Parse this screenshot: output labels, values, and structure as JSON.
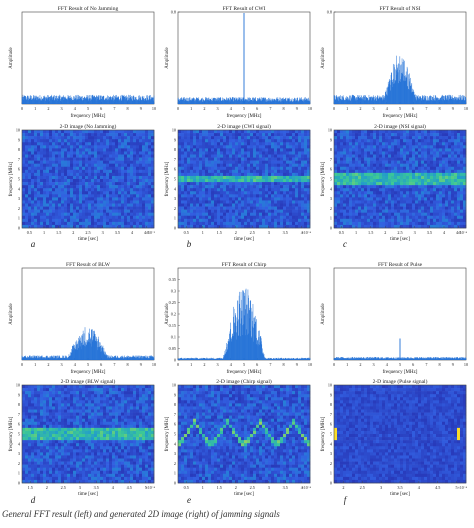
{
  "chart_data": [
    {
      "id": "fft-none",
      "type": "line",
      "title": "FFT Result of No Jamming",
      "xlabel": "frequency [MHz]",
      "ylabel": "Amplitude",
      "xlim": [
        0,
        10
      ],
      "ylim": [
        0,
        1
      ],
      "x_ticks": [
        "0",
        "1",
        "2",
        "3",
        "4",
        "5",
        "6",
        "7",
        "8",
        "9",
        "10"
      ],
      "y_ticks": [],
      "spectrum": {
        "kind": "noise",
        "floor": 0.1,
        "peak_center": 5,
        "peak_width": 0,
        "peak_height": 0
      },
      "color": "#1f6fd6"
    },
    {
      "id": "fft-cwi",
      "type": "line",
      "title": "FFT Result of CWI",
      "xlabel": "frequency [MHz]",
      "ylabel": "Amplitude",
      "xlim": [
        0,
        10
      ],
      "ylim": [
        0,
        0.8
      ],
      "x_ticks": [
        "0",
        "1",
        "2",
        "3",
        "4",
        "5",
        "6",
        "7",
        "8",
        "9",
        "10"
      ],
      "y_ticks": [
        "0.8"
      ],
      "spectrum": {
        "kind": "tone",
        "floor": 0.06,
        "peak_center": 5,
        "peak_width": 0.05,
        "peak_height": 0.8
      },
      "color": "#1f6fd6"
    },
    {
      "id": "fft-nsi",
      "type": "line",
      "title": "FFT Result of NSI",
      "xlabel": "frequency [MHz]",
      "ylabel": "Amplitude",
      "xlim": [
        0,
        10
      ],
      "ylim": [
        0,
        0.8
      ],
      "x_ticks": [
        "0",
        "1",
        "2",
        "3",
        "4",
        "5",
        "6",
        "7",
        "8",
        "9",
        "10"
      ],
      "y_ticks": [
        "0.8"
      ],
      "spectrum": {
        "kind": "band",
        "floor": 0.08,
        "peak_center": 5,
        "peak_width": 1.2,
        "peak_height": 0.38
      },
      "color": "#1f6fd6"
    },
    {
      "id": "img-none",
      "type": "heatmap",
      "title": "2-D image (No Jamming)",
      "xlabel": "time [sec]",
      "ylabel": "frequency [MHz]",
      "x_ticks": [
        "0.5",
        "1",
        "1.5",
        "2",
        "2.5",
        "3",
        "3.5",
        "4",
        "4.5"
      ],
      "x_exponent": "×10⁻³",
      "y_ticks": [
        "0",
        "1",
        "2",
        "3",
        "4",
        "5",
        "6",
        "7",
        "8",
        "9",
        "10"
      ],
      "pattern": {
        "kind": "none"
      },
      "panel_label": "a"
    },
    {
      "id": "img-cwi",
      "type": "heatmap",
      "title": "2-D image (CWI signal)",
      "xlabel": "time [sec]",
      "ylabel": "frequency [MHz]",
      "x_ticks": [
        "0.5",
        "1",
        "1.5",
        "2",
        "2.5",
        "3",
        "3.5",
        "4"
      ],
      "x_exponent": "×10⁻⁴",
      "y_ticks": [
        "0",
        "1",
        "2",
        "3",
        "4",
        "5",
        "6",
        "7",
        "8",
        "9",
        "10"
      ],
      "pattern": {
        "kind": "band",
        "center": 5,
        "width": 0.5
      },
      "panel_label": "b"
    },
    {
      "id": "img-nsi",
      "type": "heatmap",
      "title": "2-D image (NSI signal)",
      "xlabel": "time [sec]",
      "ylabel": "frequency [MHz]",
      "x_ticks": [
        "0.5",
        "1",
        "1.5",
        "2",
        "2.5",
        "3",
        "3.5",
        "4",
        "4.5"
      ],
      "x_exponent": "×10⁻⁴",
      "y_ticks": [
        "0",
        "1",
        "2",
        "3",
        "4",
        "5",
        "6",
        "7",
        "8",
        "9",
        "10"
      ],
      "pattern": {
        "kind": "band",
        "center": 5,
        "width": 0.8
      },
      "panel_label": "c"
    },
    {
      "id": "fft-blw",
      "type": "line",
      "title": "FFT Result of BLW",
      "xlabel": "frequency [MHz]",
      "ylabel": "Amplitude",
      "xlim": [
        0,
        10
      ],
      "ylim": [
        0,
        0.6
      ],
      "x_ticks": [
        "0",
        "1",
        "2",
        "3",
        "4",
        "5",
        "6",
        "7",
        "8",
        "9",
        "10"
      ],
      "y_ticks": [],
      "spectrum": {
        "kind": "band",
        "floor": 0.03,
        "peak_center": 5,
        "peak_width": 1.5,
        "peak_height": 0.2
      },
      "color": "#1f6fd6"
    },
    {
      "id": "fft-chirp",
      "type": "line",
      "title": "FFT Result of Chirp",
      "xlabel": "frequency [MHz]",
      "ylabel": "Amplitude",
      "xlim": [
        0,
        10
      ],
      "ylim": [
        0,
        0.4
      ],
      "x_ticks": [
        "0",
        "1",
        "2",
        "3",
        "4",
        "5",
        "6",
        "7",
        "8",
        "9",
        "10"
      ],
      "y_ticks": [
        "0",
        "0.05",
        "0.1",
        "0.15",
        "0.2",
        "0.25",
        "0.3",
        "0.35"
      ],
      "spectrum": {
        "kind": "band",
        "floor": 0.01,
        "peak_center": 5,
        "peak_width": 1.6,
        "peak_height": 0.32
      },
      "color": "#1f6fd6"
    },
    {
      "id": "fft-pulse",
      "type": "line",
      "title": "FFT Result of Pulse",
      "xlabel": "frequency [MHz]",
      "ylabel": "Amplitude",
      "xlim": [
        0,
        10
      ],
      "ylim": [
        0,
        0.6
      ],
      "x_ticks": [
        "0",
        "1",
        "2",
        "3",
        "4",
        "5",
        "6",
        "7",
        "8",
        "9",
        "10"
      ],
      "y_ticks": [],
      "spectrum": {
        "kind": "tone",
        "floor": 0.02,
        "peak_center": 5,
        "peak_width": 0.08,
        "peak_height": 0.14
      },
      "color": "#1f6fd6"
    },
    {
      "id": "img-blw",
      "type": "heatmap",
      "title": "2-D image (BLW signal)",
      "xlabel": "time [sec]",
      "ylabel": "frequency [MHz]",
      "x_ticks": [
        "1.5",
        "2",
        "2.5",
        "3",
        "3.5",
        "4",
        "4.5",
        "5"
      ],
      "x_exponent": "×10⁻⁴",
      "y_ticks": [
        "0",
        "1",
        "2",
        "3",
        "4",
        "5",
        "6",
        "7",
        "8",
        "9",
        "10"
      ],
      "pattern": {
        "kind": "band",
        "center": 5,
        "width": 1.2
      },
      "panel_label": "d"
    },
    {
      "id": "img-chirp",
      "type": "heatmap",
      "title": "2-D image (Chirp signal)",
      "xlabel": "time [sec]",
      "ylabel": "frequency [MHz]",
      "x_ticks": [
        "0.5",
        "1",
        "1.5",
        "2",
        "2.5",
        "3",
        "3.5",
        "4"
      ],
      "x_exponent": "×10⁻⁴",
      "y_ticks": [
        "0",
        "1",
        "2",
        "3",
        "4",
        "5",
        "6",
        "7",
        "8",
        "9",
        "10"
      ],
      "pattern": {
        "kind": "zigzag",
        "center": 5,
        "amplitude": 1.2,
        "cycles": 4
      },
      "panel_label": "e"
    },
    {
      "id": "img-pulse",
      "type": "heatmap",
      "title": "2-D image (Pulse signal)",
      "xlabel": "time [sec]",
      "ylabel": "frequency [MHz]",
      "x_ticks": [
        "2",
        "2.5",
        "3",
        "3.5",
        "4",
        "4.5",
        "5"
      ],
      "x_exponent": "×10⁻⁴",
      "y_ticks": [
        "0",
        "1",
        "2",
        "3",
        "4",
        "5",
        "6",
        "7",
        "8",
        "9",
        "10"
      ],
      "pattern": {
        "kind": "pulses",
        "center": 5,
        "times": [
          0.02,
          0.95
        ]
      },
      "panel_label": "f"
    }
  ],
  "caption": "General FFT result (left) and generated 2D image (right) of jamming signals"
}
